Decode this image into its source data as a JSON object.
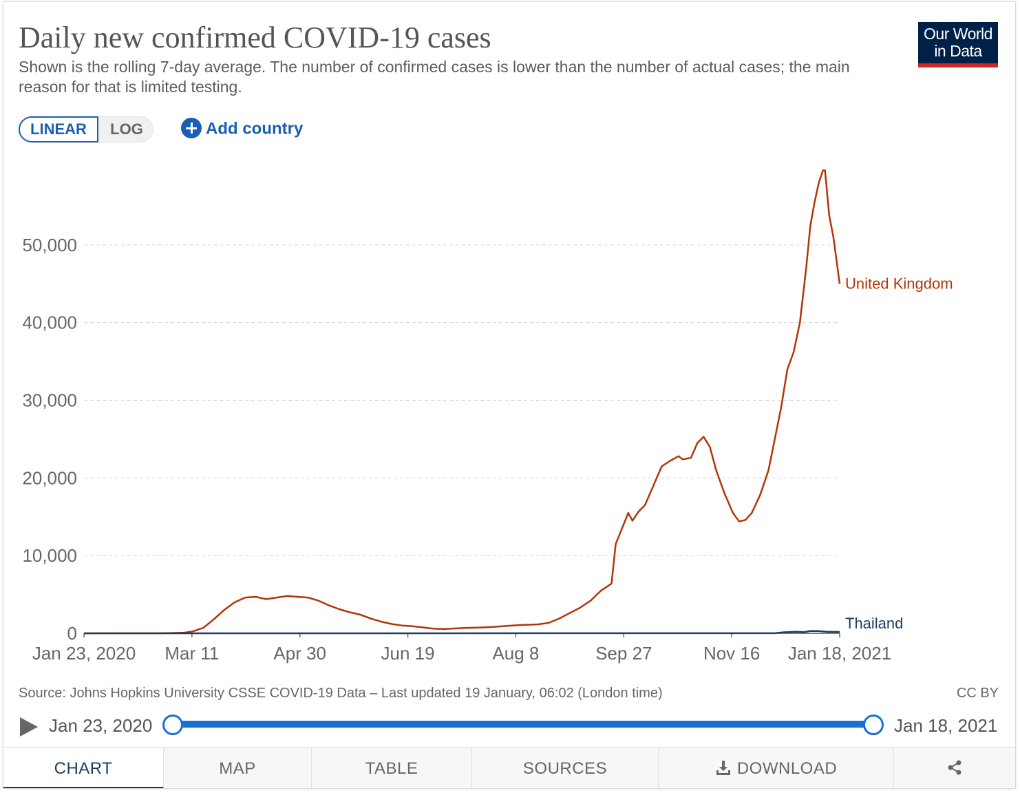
{
  "header": {
    "title": "Daily new confirmed COVID-19 cases",
    "subtitle": "Shown is the rolling 7-day average. The number of confirmed cases is lower than the number of actual cases; the main reason for that is limited testing.",
    "logo_line1": "Our World",
    "logo_line2": "in Data"
  },
  "controls": {
    "linear_label": "LINEAR",
    "log_label": "LOG",
    "add_country_label": "Add country",
    "selected_scale": "linear"
  },
  "chart_data": {
    "type": "line",
    "title": "Daily new confirmed COVID-19 cases",
    "xlabel": "",
    "ylabel": "",
    "x_tick_labels": [
      "Jan 23, 2020",
      "Mar 11",
      "Apr 30",
      "Jun 19",
      "Aug 8",
      "Sep 27",
      "Nov 16",
      "Jan 18, 2021"
    ],
    "y_ticks": [
      0,
      10000,
      20000,
      30000,
      40000,
      50000
    ],
    "y_tick_labels": [
      "0",
      "10,000",
      "20,000",
      "30,000",
      "40,000",
      "50,000"
    ],
    "xlim": [
      "2020-01-23",
      "2021-01-18"
    ],
    "ylim": [
      0,
      60000
    ],
    "grid": "horizontal dashed",
    "legend": "inline labels at line ends",
    "series": [
      {
        "name": "United Kingdom",
        "color": "#b13507",
        "points": [
          [
            "2020-01-23",
            0
          ],
          [
            "2020-03-01",
            5
          ],
          [
            "2020-03-11",
            80
          ],
          [
            "2020-03-15",
            250
          ],
          [
            "2020-03-20",
            700
          ],
          [
            "2020-03-25",
            1800
          ],
          [
            "2020-03-30",
            3000
          ],
          [
            "2020-04-04",
            4000
          ],
          [
            "2020-04-09",
            4600
          ],
          [
            "2020-04-14",
            4700
          ],
          [
            "2020-04-19",
            4400
          ],
          [
            "2020-04-24",
            4600
          ],
          [
            "2020-04-29",
            4800
          ],
          [
            "2020-05-04",
            4700
          ],
          [
            "2020-05-09",
            4600
          ],
          [
            "2020-05-14",
            4200
          ],
          [
            "2020-05-19",
            3600
          ],
          [
            "2020-05-24",
            3100
          ],
          [
            "2020-05-29",
            2700
          ],
          [
            "2020-06-03",
            2400
          ],
          [
            "2020-06-08",
            1900
          ],
          [
            "2020-06-13",
            1500
          ],
          [
            "2020-06-18",
            1200
          ],
          [
            "2020-06-23",
            1000
          ],
          [
            "2020-06-28",
            900
          ],
          [
            "2020-07-03",
            750
          ],
          [
            "2020-07-08",
            600
          ],
          [
            "2020-07-13",
            550
          ],
          [
            "2020-07-18",
            620
          ],
          [
            "2020-07-23",
            680
          ],
          [
            "2020-07-28",
            720
          ],
          [
            "2020-08-02",
            780
          ],
          [
            "2020-08-07",
            850
          ],
          [
            "2020-08-12",
            950
          ],
          [
            "2020-08-17",
            1050
          ],
          [
            "2020-08-22",
            1100
          ],
          [
            "2020-08-27",
            1150
          ],
          [
            "2020-09-01",
            1350
          ],
          [
            "2020-09-06",
            1900
          ],
          [
            "2020-09-11",
            2600
          ],
          [
            "2020-09-16",
            3300
          ],
          [
            "2020-09-21",
            4200
          ],
          [
            "2020-09-26",
            5500
          ],
          [
            "2020-10-01",
            6400
          ],
          [
            "2020-10-03",
            11500
          ],
          [
            "2020-10-06",
            13500
          ],
          [
            "2020-10-09",
            15500
          ],
          [
            "2020-10-11",
            14500
          ],
          [
            "2020-10-14",
            15700
          ],
          [
            "2020-10-17",
            16500
          ],
          [
            "2020-10-21",
            19000
          ],
          [
            "2020-10-25",
            21500
          ],
          [
            "2020-10-29",
            22200
          ],
          [
            "2020-11-02",
            22800
          ],
          [
            "2020-11-04",
            22400
          ],
          [
            "2020-11-08",
            22600
          ],
          [
            "2020-11-11",
            24500
          ],
          [
            "2020-11-14",
            25300
          ],
          [
            "2020-11-17",
            24000
          ],
          [
            "2020-11-20",
            21000
          ],
          [
            "2020-11-24",
            18000
          ],
          [
            "2020-11-28",
            15500
          ],
          [
            "2020-12-01",
            14400
          ],
          [
            "2020-12-04",
            14600
          ],
          [
            "2020-12-07",
            15500
          ],
          [
            "2020-12-11",
            17800
          ],
          [
            "2020-12-15",
            21000
          ],
          [
            "2020-12-18",
            25000
          ],
          [
            "2020-12-21",
            29000
          ],
          [
            "2020-12-24",
            34000
          ],
          [
            "2020-12-27",
            36200
          ],
          [
            "2020-12-30",
            40000
          ],
          [
            "2021-01-02",
            47000
          ],
          [
            "2021-01-04",
            52500
          ],
          [
            "2021-01-06",
            55500
          ],
          [
            "2021-01-08",
            58000
          ],
          [
            "2021-01-10",
            59600
          ],
          [
            "2021-01-11",
            59600
          ],
          [
            "2021-01-13",
            53800
          ],
          [
            "2021-01-15",
            51000
          ],
          [
            "2021-01-18",
            45000
          ]
        ]
      },
      {
        "name": "Thailand",
        "color": "#1d3d63",
        "points": [
          [
            "2020-01-23",
            0
          ],
          [
            "2020-12-18",
            10
          ],
          [
            "2020-12-22",
            120
          ],
          [
            "2020-12-28",
            200
          ],
          [
            "2021-01-01",
            150
          ],
          [
            "2021-01-04",
            300
          ],
          [
            "2021-01-08",
            280
          ],
          [
            "2021-01-12",
            200
          ],
          [
            "2021-01-18",
            180
          ]
        ]
      }
    ]
  },
  "footer": {
    "source": "Source: Johns Hopkins University CSSE COVID-19 Data – Last updated 19 January, 06:02 (London time)",
    "license": "CC BY"
  },
  "timeline": {
    "start_label": "Jan 23, 2020",
    "end_label": "Jan 18, 2021",
    "play_icon": "play-icon"
  },
  "tabs": {
    "chart": "CHART",
    "map": "MAP",
    "table": "TABLE",
    "sources": "SOURCES",
    "download": "DOWNLOAD",
    "share_icon": "share-icon",
    "active": "chart"
  }
}
